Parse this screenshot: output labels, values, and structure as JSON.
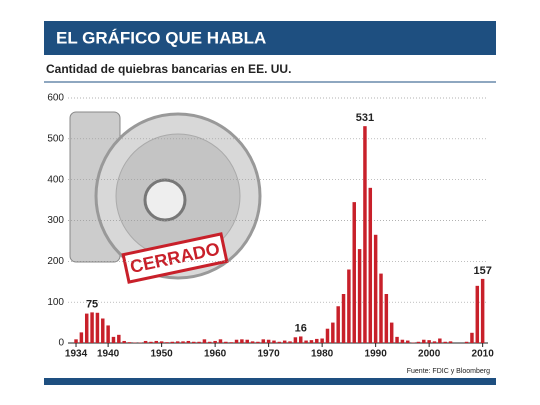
{
  "chart_data": {
    "type": "bar",
    "title": "EL GRÁFICO QUE HABLA",
    "subtitle": "Cantidad de quiebras bancarias en EE. UU.",
    "source": "Fuente: FDIC y Bloomberg",
    "stamp": "CERRADO",
    "color": "#c8202a",
    "grid": true,
    "x": [
      1934,
      1935,
      1936,
      1937,
      1938,
      1939,
      1940,
      1941,
      1942,
      1943,
      1944,
      1945,
      1946,
      1947,
      1948,
      1949,
      1950,
      1951,
      1952,
      1953,
      1954,
      1955,
      1956,
      1957,
      1958,
      1959,
      1960,
      1961,
      1962,
      1963,
      1964,
      1965,
      1966,
      1967,
      1968,
      1969,
      1970,
      1971,
      1972,
      1973,
      1974,
      1975,
      1976,
      1977,
      1978,
      1979,
      1980,
      1981,
      1982,
      1983,
      1984,
      1985,
      1986,
      1987,
      1988,
      1989,
      1990,
      1991,
      1992,
      1993,
      1994,
      1995,
      1996,
      1997,
      1998,
      1999,
      2000,
      2001,
      2002,
      2003,
      2004,
      2005,
      2006,
      2007,
      2008,
      2009,
      2010
    ],
    "values": [
      9,
      26,
      72,
      75,
      74,
      60,
      43,
      15,
      20,
      5,
      2,
      1,
      1,
      5,
      3,
      5,
      4,
      2,
      3,
      4,
      4,
      5,
      3,
      3,
      9,
      3,
      5,
      9,
      3,
      2,
      8,
      9,
      8,
      4,
      3,
      9,
      8,
      6,
      3,
      6,
      4,
      14,
      16,
      6,
      7,
      10,
      11,
      35,
      50,
      90,
      120,
      180,
      345,
      230,
      531,
      380,
      265,
      170,
      120,
      50,
      15,
      8,
      6,
      1,
      3,
      8,
      7,
      4,
      11,
      3,
      4,
      0,
      0,
      3,
      25,
      140,
      157
    ],
    "annotations": [
      {
        "x": 1937,
        "value": 75
      },
      {
        "x": 1976,
        "value": 16
      },
      {
        "x": 1988,
        "value": 531
      },
      {
        "x": 2010,
        "value": 157
      }
    ],
    "xlim": [
      1932.5,
      2011
    ],
    "xticks": [
      1934,
      1940,
      1950,
      1960,
      1970,
      1980,
      1990,
      2000,
      2010
    ],
    "ylim": [
      0,
      600
    ],
    "yticks": [
      0,
      100,
      200,
      300,
      400,
      500,
      600
    ]
  }
}
